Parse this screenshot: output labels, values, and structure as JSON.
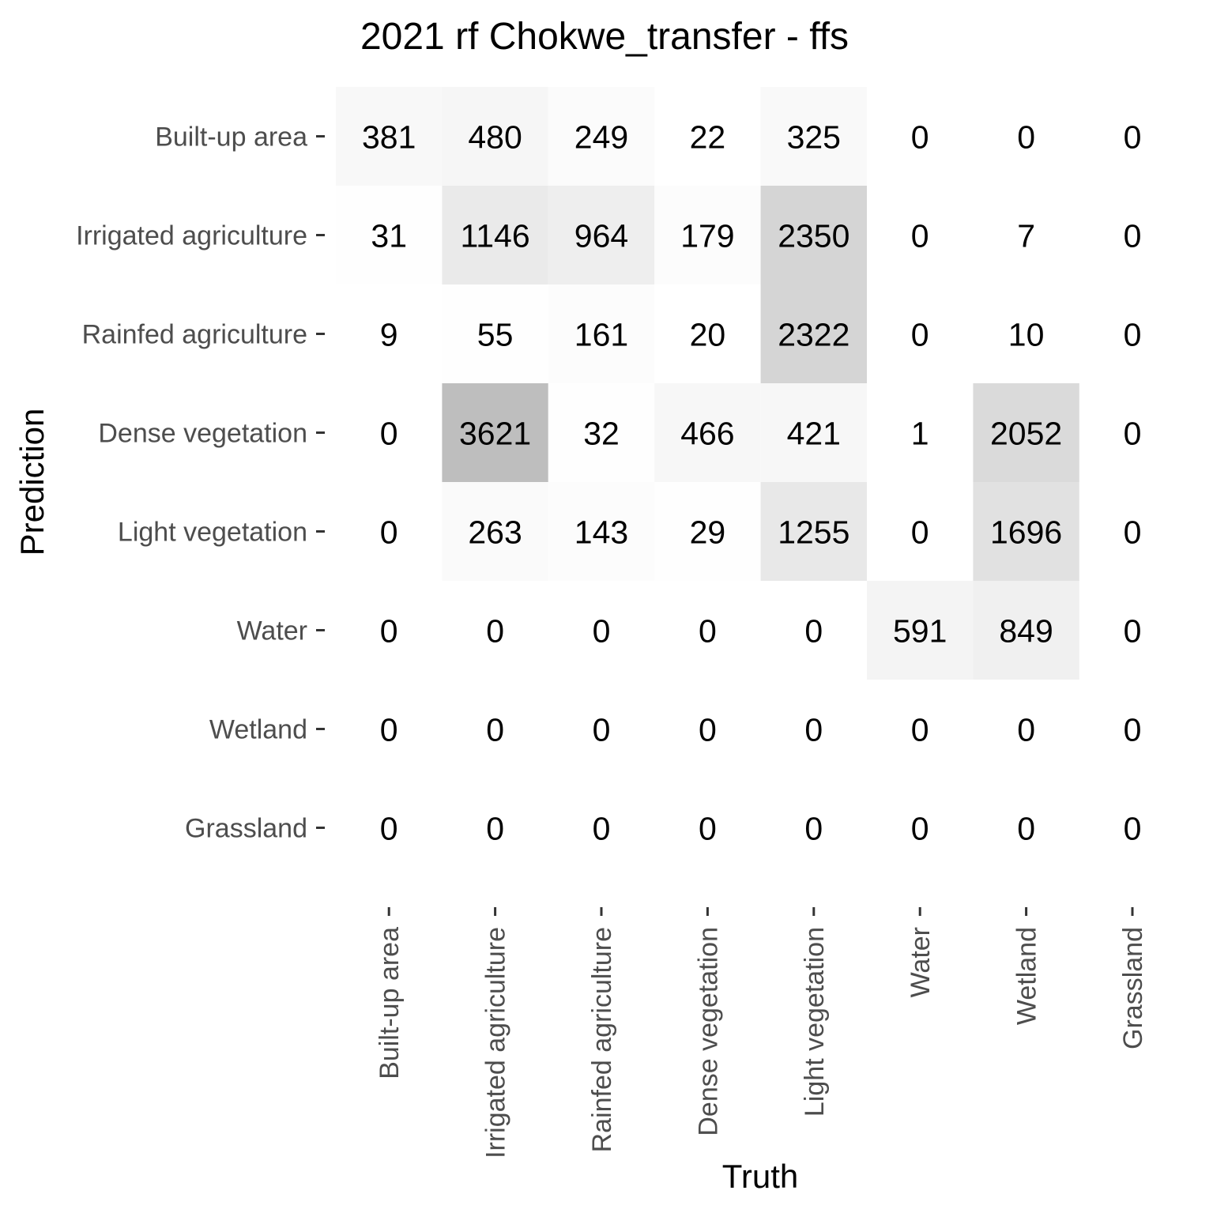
{
  "chart_data": {
    "type": "heatmap",
    "title": "2021 rf Chokwe_transfer - ffs",
    "xlabel": "Truth",
    "ylabel": "Prediction",
    "x_categories": [
      "Built-up area",
      "Irrigated agriculture",
      "Rainfed agriculture",
      "Dense vegetation",
      "Light vegetation",
      "Water",
      "Wetland",
      "Grassland"
    ],
    "y_categories": [
      "Built-up area",
      "Irrigated agriculture",
      "Rainfed agriculture",
      "Dense vegetation",
      "Light vegetation",
      "Water",
      "Wetland",
      "Grassland"
    ],
    "values": [
      [
        381,
        480,
        249,
        22,
        325,
        0,
        0,
        0
      ],
      [
        31,
        1146,
        964,
        179,
        2350,
        0,
        7,
        0
      ],
      [
        9,
        55,
        161,
        20,
        2322,
        0,
        10,
        0
      ],
      [
        0,
        3621,
        32,
        466,
        421,
        1,
        2052,
        0
      ],
      [
        0,
        263,
        143,
        29,
        1255,
        0,
        1696,
        0
      ],
      [
        0,
        0,
        0,
        0,
        0,
        591,
        849,
        0
      ],
      [
        0,
        0,
        0,
        0,
        0,
        0,
        0,
        0
      ],
      [
        0,
        0,
        0,
        0,
        0,
        0,
        0,
        0
      ]
    ],
    "color_scale": {
      "low": "#ffffff",
      "high": "#bebebe"
    },
    "legend": "none",
    "grid": false
  }
}
